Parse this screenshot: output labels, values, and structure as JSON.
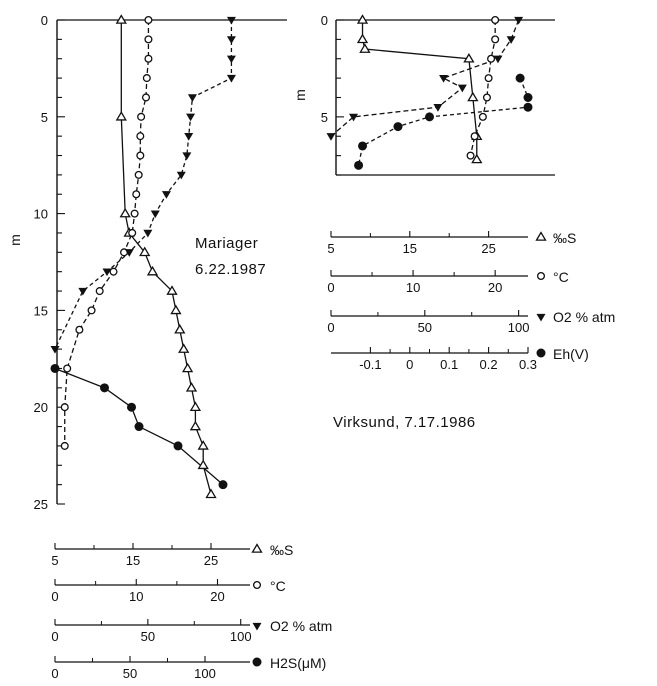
{
  "chart_data": [
    {
      "type": "line",
      "site": "Mariager",
      "date": "6.22.1987",
      "ylabel": "m",
      "ylim": [
        0,
        25
      ],
      "yticks": [
        "0",
        "5",
        "10",
        "15",
        "20",
        "25"
      ],
      "y_inverted": true,
      "axes": [
        {
          "key": "S",
          "label": "‰S",
          "marker": "triangle-open",
          "range": [
            5,
            30
          ],
          "ticks": [
            "5",
            "15",
            "25"
          ]
        },
        {
          "key": "T",
          "label": "°C",
          "marker": "circle-open",
          "range": [
            0,
            24
          ],
          "ticks": [
            "0",
            "10",
            "20"
          ]
        },
        {
          "key": "O2",
          "label": "O2 % atm",
          "marker": "triangle-down-filled",
          "range": [
            0,
            105
          ],
          "ticks": [
            "0",
            "50",
            "100"
          ]
        },
        {
          "key": "H2S",
          "label": "H2S(μM)",
          "marker": "circle-filled",
          "range": [
            0,
            130
          ],
          "ticks": [
            "0",
            "50",
            "100"
          ]
        }
      ],
      "series": [
        {
          "name": "‰S",
          "axis": "S",
          "depth": [
            0,
            5,
            10,
            11,
            12,
            13,
            14,
            15,
            16,
            17,
            18,
            19,
            20,
            21,
            22,
            23,
            24.5
          ],
          "values": [
            13.5,
            13.5,
            14,
            14.5,
            16.5,
            17.5,
            20,
            20.5,
            21,
            21.5,
            22,
            22.5,
            23,
            23,
            24,
            24,
            25
          ]
        },
        {
          "name": "°C",
          "axis": "T",
          "depth": [
            0,
            1,
            2,
            3,
            4,
            5,
            6,
            7,
            8,
            9,
            10,
            11,
            12,
            13,
            14,
            15,
            16,
            18,
            20,
            22
          ],
          "values": [
            11.5,
            11.5,
            11.5,
            11.3,
            11.2,
            10.6,
            10.5,
            10.5,
            10.3,
            10,
            9.8,
            9.5,
            8.5,
            7.2,
            5.5,
            4.5,
            3,
            1.5,
            1.2,
            1.2
          ]
        },
        {
          "name": "O2 % atm",
          "axis": "O2",
          "depth": [
            0,
            1,
            2,
            3,
            4,
            5,
            6,
            7,
            8,
            9,
            10,
            11,
            12,
            13,
            14,
            17
          ],
          "values": [
            95,
            95,
            95,
            95,
            74,
            73,
            72,
            71,
            68,
            60,
            54,
            50,
            40,
            28,
            15,
            0
          ]
        },
        {
          "name": "H2S(μM)",
          "axis": "H2S",
          "depth": [
            18,
            19,
            20,
            21,
            22,
            24
          ],
          "values": [
            0,
            33,
            51,
            56,
            82,
            112
          ]
        }
      ]
    },
    {
      "type": "line",
      "site": "Virksund, 7.17.1986",
      "ylabel": "m",
      "ylim": [
        0,
        8
      ],
      "yticks": [
        "0",
        "5"
      ],
      "y_inverted": true,
      "axes": [
        {
          "key": "S",
          "label": "‰S",
          "marker": "triangle-open",
          "range": [
            5,
            30
          ],
          "ticks": [
            "5",
            "15",
            "25"
          ]
        },
        {
          "key": "T",
          "label": "°C",
          "marker": "circle-open",
          "range": [
            0,
            24
          ],
          "ticks": [
            "0",
            "10",
            "20"
          ]
        },
        {
          "key": "O2",
          "label": "O2 % atm",
          "marker": "triangle-down-filled",
          "range": [
            0,
            105
          ],
          "ticks": [
            "0",
            "50",
            "100"
          ]
        },
        {
          "key": "Eh",
          "label": "Eh(V)",
          "marker": "circle-filled",
          "range": [
            -0.2,
            0.3
          ],
          "ticks": [
            "-0.1",
            "0",
            "0.1",
            "0.2",
            "0.3"
          ]
        }
      ],
      "series": [
        {
          "name": "‰S",
          "axis": "S",
          "depth": [
            0,
            1,
            1.5,
            2,
            4,
            6,
            7.2
          ],
          "values": [
            9,
            9,
            9.3,
            22.5,
            23,
            23.5,
            23.5
          ]
        },
        {
          "name": "°C",
          "axis": "T",
          "depth": [
            0,
            1,
            2,
            3,
            4,
            5,
            6,
            7
          ],
          "values": [
            20,
            20,
            19.5,
            19.2,
            19,
            18.5,
            17.5,
            17
          ]
        },
        {
          "name": "O2 % atm",
          "axis": "O2",
          "depth": [
            0,
            1,
            2,
            3,
            3.5,
            4.5,
            5,
            6
          ],
          "values": [
            100,
            96,
            89,
            60,
            70,
            57,
            12,
            0
          ]
        },
        {
          "name": "Eh(V)",
          "axis": "Eh",
          "depth": [
            3,
            4,
            4.5,
            5,
            5.5,
            6.5,
            7.5
          ],
          "values": [
            0.28,
            0.3,
            0.3,
            0.05,
            -0.03,
            -0.12,
            -0.13
          ]
        }
      ]
    }
  ]
}
